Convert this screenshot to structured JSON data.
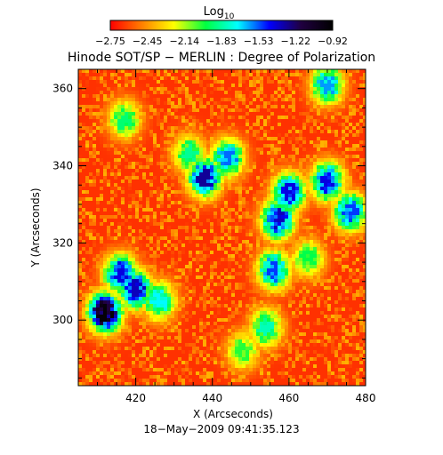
{
  "chart_data": {
    "type": "heatmap",
    "title": "Hinode SOT/SP − MERLIN : Degree of Polarization",
    "subtitle": "18−May−2009 09:41:35.123",
    "xlabel": "X (Arcseconds)",
    "ylabel": "Y (Arcseconds)",
    "xlim": [
      405,
      480
    ],
    "ylim": [
      283,
      365
    ],
    "x_ticks": [
      420,
      440,
      460,
      480
    ],
    "y_ticks": [
      300,
      320,
      340,
      360
    ],
    "colorbar": {
      "title": "Log",
      "title_subscript": "10",
      "range": [
        -2.75,
        -0.92
      ],
      "tick_labels": [
        "−2.75",
        "−2.45",
        "−2.14",
        "−1.83",
        "−1.53",
        "−1.22",
        "−0.92"
      ],
      "colormap": [
        "#ff0000",
        "#ff8000",
        "#ffff00",
        "#00ff40",
        "#00ffff",
        "#0000ff",
        "#200040",
        "#000000"
      ]
    },
    "high_polarization_regions": [
      {
        "x": 412,
        "y": 302,
        "value": -0.95
      },
      {
        "x": 420,
        "y": 308,
        "value": -1.35
      },
      {
        "x": 416,
        "y": 312,
        "value": -1.4
      },
      {
        "x": 426,
        "y": 305,
        "value": -1.7
      },
      {
        "x": 438,
        "y": 337,
        "value": -1.3
      },
      {
        "x": 444,
        "y": 342,
        "value": -1.55
      },
      {
        "x": 434,
        "y": 343,
        "value": -1.85
      },
      {
        "x": 457,
        "y": 326,
        "value": -1.35
      },
      {
        "x": 460,
        "y": 333,
        "value": -1.4
      },
      {
        "x": 456,
        "y": 313,
        "value": -1.5
      },
      {
        "x": 470,
        "y": 336,
        "value": -1.4
      },
      {
        "x": 476,
        "y": 328,
        "value": -1.5
      },
      {
        "x": 454,
        "y": 298,
        "value": -1.8
      },
      {
        "x": 470,
        "y": 361,
        "value": -1.6
      },
      {
        "x": 417,
        "y": 352,
        "value": -1.9
      },
      {
        "x": 465,
        "y": 316,
        "value": -1.95
      },
      {
        "x": 448,
        "y": 292,
        "value": -2.0
      }
    ],
    "background_value": -2.65
  }
}
